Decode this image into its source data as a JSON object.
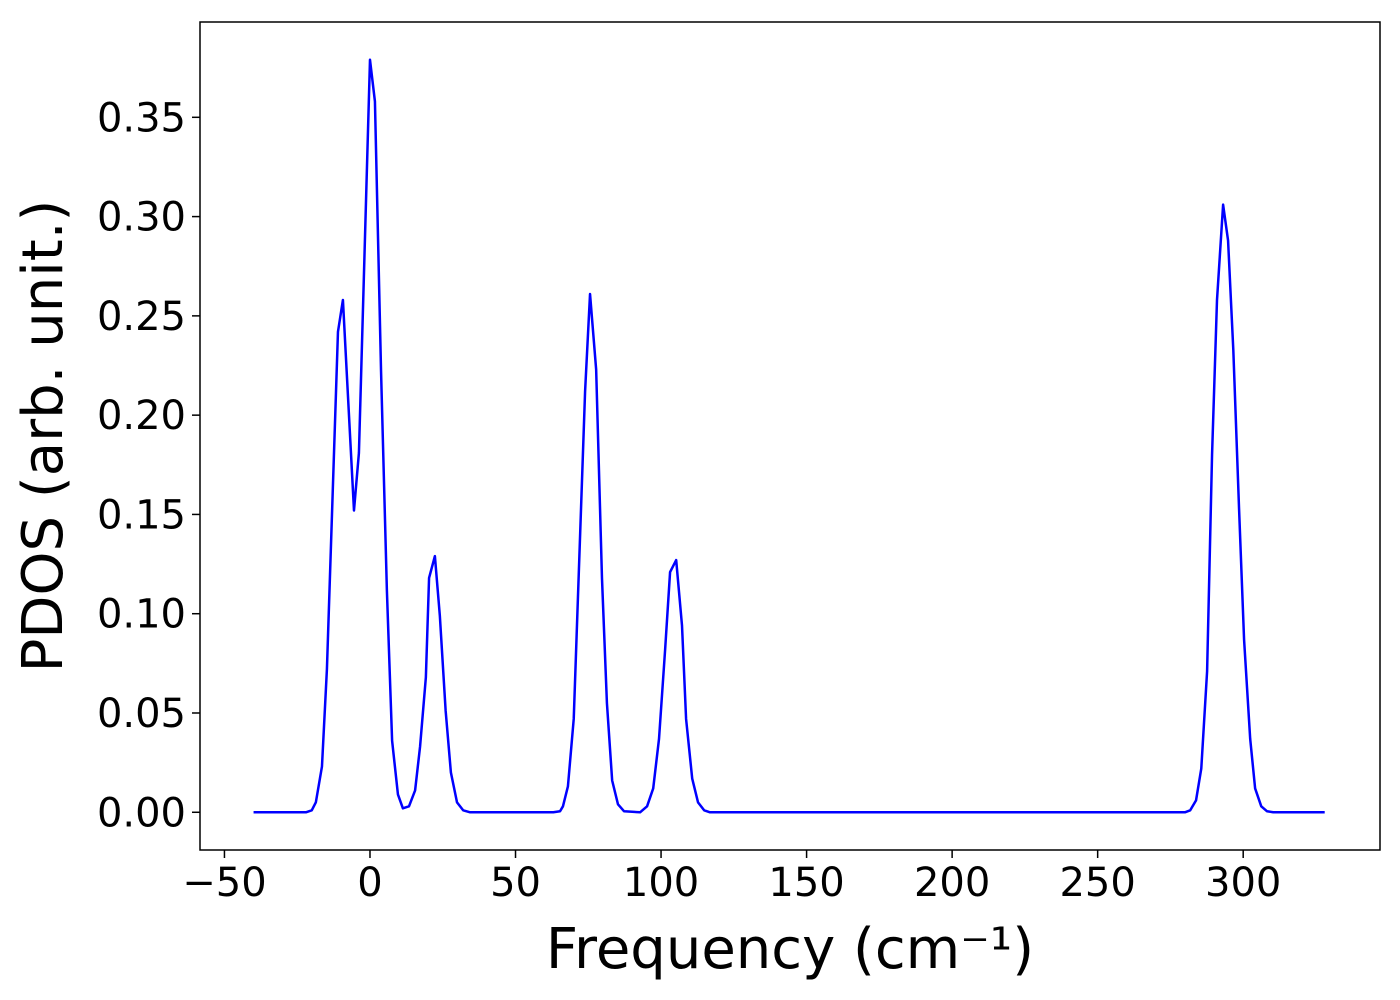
{
  "chart_data": {
    "type": "line",
    "x_label": "Frequency (cm⁻¹)",
    "y_label": "PDOS (arb. unit.)",
    "x": [
      -40,
      -22,
      -20,
      -18.6,
      -16.5,
      -14.8,
      -11,
      -9.3,
      -5.5,
      -3.8,
      0,
      1.7,
      3.8,
      5.8,
      7.6,
      9.6,
      11.3,
      13.4,
      15.5,
      17.2,
      19.2,
      20.3,
      22.3,
      24,
      26,
      27.8,
      29.9,
      32,
      34.4,
      63,
      65.3,
      66.3,
      68,
      70,
      73.9,
      75.6,
      77.7,
      79.7,
      81.4,
      83.2,
      85.2,
      87.3,
      92.8,
      95.2,
      97.3,
      99.3,
      101.4,
      103.1,
      105.2,
      107.2,
      108.6,
      110.7,
      112.7,
      114.8,
      116.8,
      280,
      281.8,
      283.8,
      285.6,
      287.6,
      289.3,
      291,
      293.1,
      294.8,
      296.6,
      298.6,
      300.3,
      302.4,
      304.1,
      306.2,
      308.2,
      310.3,
      328
    ],
    "series": [
      {
        "color": "#0000ff",
        "values": [
          0,
          0,
          0.001,
          0.005,
          0.023,
          0.072,
          0.242,
          0.258,
          0.152,
          0.181,
          0.379,
          0.358,
          0.222,
          0.112,
          0.036,
          0.009,
          0.002,
          0.003,
          0.011,
          0.033,
          0.068,
          0.118,
          0.129,
          0.099,
          0.051,
          0.02,
          0.005,
          0.001,
          0,
          0,
          0.0005,
          0.003,
          0.013,
          0.047,
          0.212,
          0.261,
          0.223,
          0.118,
          0.055,
          0.016,
          0.004,
          0.0005,
          0,
          0.003,
          0.012,
          0.037,
          0.082,
          0.121,
          0.127,
          0.094,
          0.047,
          0.017,
          0.005,
          0.001,
          0,
          0,
          0.001,
          0.006,
          0.022,
          0.071,
          0.18,
          0.258,
          0.306,
          0.288,
          0.233,
          0.152,
          0.087,
          0.037,
          0.012,
          0.003,
          0.0005,
          0,
          0
        ]
      }
    ],
    "xlim": [
      -58.4,
      347
    ],
    "ylim": [
      -0.019,
      0.398
    ],
    "xticks": [
      {
        "value": -50,
        "label": "−50"
      },
      0,
      50,
      100,
      150,
      200,
      250,
      300
    ],
    "yticks": [
      {
        "value": 0,
        "label": "0.00"
      },
      0.05,
      {
        "value": 0.1,
        "label": "0.10"
      },
      0.15,
      {
        "value": 0.2,
        "label": "0.20"
      },
      0.25,
      {
        "value": 0.3,
        "label": "0.30"
      },
      0.35
    ]
  }
}
